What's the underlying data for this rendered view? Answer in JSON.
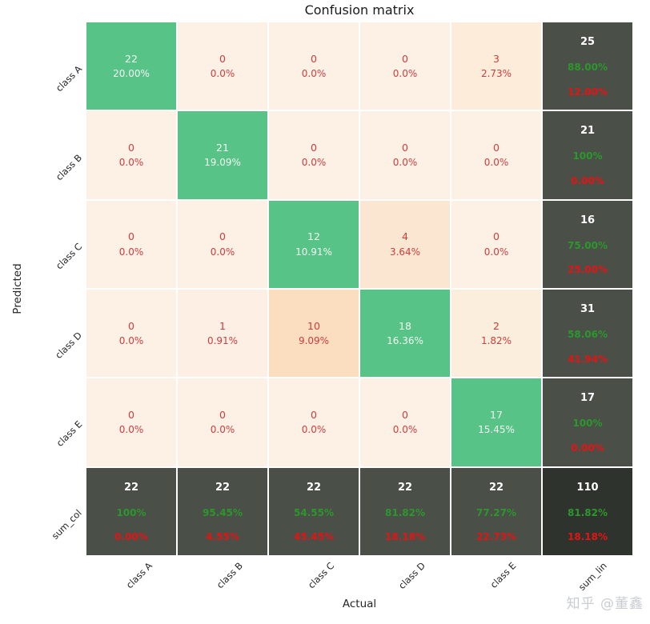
{
  "title": "Confusion matrix",
  "xlabel": "Actual",
  "ylabel": "Predicted",
  "watermark": "知乎 @董鑫",
  "colors": {
    "diag_bg": "#57c386",
    "zero_bg": "#fdf1e6",
    "sum_bg": "#4a4f48",
    "total_bg": "#2e332d",
    "off_text": "#d03c3c",
    "diag_text": "#f2f8f3",
    "sum_value_text": "#ffffff",
    "good_text": "#2c972c",
    "bad_text": "#e41414"
  },
  "chart_data": {
    "type": "heatmap",
    "title": "Confusion matrix",
    "xlabel": "Actual",
    "ylabel": "Predicted",
    "row_labels": [
      "class A",
      "class B",
      "class C",
      "class D",
      "class E",
      "sum_col"
    ],
    "col_labels": [
      "class A",
      "class B",
      "class C",
      "class D",
      "class E",
      "sum_lin"
    ],
    "matrix": [
      [
        22,
        0,
        0,
        0,
        3
      ],
      [
        0,
        21,
        0,
        0,
        0
      ],
      [
        0,
        0,
        12,
        4,
        0
      ],
      [
        0,
        1,
        10,
        18,
        2
      ],
      [
        0,
        0,
        0,
        0,
        17
      ]
    ],
    "cells": [
      [
        {
          "kind": "diag",
          "value": "22",
          "pct": "20.00%",
          "bg": "#57c386"
        },
        {
          "kind": "off",
          "value": "0",
          "pct": "0.0%",
          "bg": "#fdf1e6"
        },
        {
          "kind": "off",
          "value": "0",
          "pct": "0.0%",
          "bg": "#fdf1e6"
        },
        {
          "kind": "off",
          "value": "0",
          "pct": "0.0%",
          "bg": "#fdf1e6"
        },
        {
          "kind": "off",
          "value": "3",
          "pct": "2.73%",
          "bg": "#fdecda"
        },
        {
          "kind": "sum",
          "value": "25",
          "good": "88.00%",
          "bad": "12.00%",
          "bg": "#4a4f48"
        }
      ],
      [
        {
          "kind": "off",
          "value": "0",
          "pct": "0.0%",
          "bg": "#fdf1e6"
        },
        {
          "kind": "diag",
          "value": "21",
          "pct": "19.09%",
          "bg": "#57c386"
        },
        {
          "kind": "off",
          "value": "0",
          "pct": "0.0%",
          "bg": "#fdf1e6"
        },
        {
          "kind": "off",
          "value": "0",
          "pct": "0.0%",
          "bg": "#fdf1e6"
        },
        {
          "kind": "off",
          "value": "0",
          "pct": "0.0%",
          "bg": "#fdf1e6"
        },
        {
          "kind": "sum",
          "value": "21",
          "good": "100%",
          "bad": "0.00%",
          "bg": "#4a4f48"
        }
      ],
      [
        {
          "kind": "off",
          "value": "0",
          "pct": "0.0%",
          "bg": "#fdf1e6"
        },
        {
          "kind": "off",
          "value": "0",
          "pct": "0.0%",
          "bg": "#fdf1e6"
        },
        {
          "kind": "diag",
          "value": "12",
          "pct": "10.91%",
          "bg": "#57c386"
        },
        {
          "kind": "off",
          "value": "4",
          "pct": "3.64%",
          "bg": "#fbe7d1"
        },
        {
          "kind": "off",
          "value": "0",
          "pct": "0.0%",
          "bg": "#fdf1e6"
        },
        {
          "kind": "sum",
          "value": "16",
          "good": "75.00%",
          "bad": "25.00%",
          "bg": "#4a4f48"
        }
      ],
      [
        {
          "kind": "off",
          "value": "0",
          "pct": "0.0%",
          "bg": "#fdf1e6"
        },
        {
          "kind": "off",
          "value": "1",
          "pct": "0.91%",
          "bg": "#fdefe3"
        },
        {
          "kind": "off",
          "value": "10",
          "pct": "9.09%",
          "bg": "#fbddc0"
        },
        {
          "kind": "diag",
          "value": "18",
          "pct": "16.36%",
          "bg": "#57c386"
        },
        {
          "kind": "off",
          "value": "2",
          "pct": "1.82%",
          "bg": "#fceedd"
        },
        {
          "kind": "sum",
          "value": "31",
          "good": "58.06%",
          "bad": "41.94%",
          "bg": "#4a4f48"
        }
      ],
      [
        {
          "kind": "off",
          "value": "0",
          "pct": "0.0%",
          "bg": "#fdf1e6"
        },
        {
          "kind": "off",
          "value": "0",
          "pct": "0.0%",
          "bg": "#fdf1e6"
        },
        {
          "kind": "off",
          "value": "0",
          "pct": "0.0%",
          "bg": "#fdf1e6"
        },
        {
          "kind": "off",
          "value": "0",
          "pct": "0.0%",
          "bg": "#fdf1e6"
        },
        {
          "kind": "diag",
          "value": "17",
          "pct": "15.45%",
          "bg": "#57c386"
        },
        {
          "kind": "sum",
          "value": "17",
          "good": "100%",
          "bad": "0.00%",
          "bg": "#4a4f48"
        }
      ],
      [
        {
          "kind": "sum",
          "value": "22",
          "good": "100%",
          "bad": "0.00%",
          "bg": "#4a4f48"
        },
        {
          "kind": "sum",
          "value": "22",
          "good": "95.45%",
          "bad": "4.55%",
          "bg": "#4a4f48"
        },
        {
          "kind": "sum",
          "value": "22",
          "good": "54.55%",
          "bad": "45.45%",
          "bg": "#4a4f48"
        },
        {
          "kind": "sum",
          "value": "22",
          "good": "81.82%",
          "bad": "18.18%",
          "bg": "#4a4f48"
        },
        {
          "kind": "sum",
          "value": "22",
          "good": "77.27%",
          "bad": "22.73%",
          "bg": "#4a4f48"
        },
        {
          "kind": "total",
          "value": "110",
          "good": "81.82%",
          "bad": "18.18%",
          "bg": "#2e332d"
        }
      ]
    ]
  }
}
